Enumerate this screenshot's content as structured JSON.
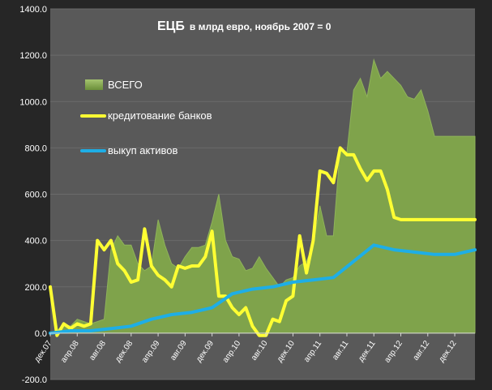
{
  "chart_data": {
    "type": "area",
    "title": "ЕЦБ",
    "subtitle": "в млрд евро, ноябрь 2007 = 0",
    "ylim": [
      -200,
      1400
    ],
    "yticks": [
      "-200.0",
      "0.0",
      "200.0",
      "400.0",
      "600.0",
      "800.0",
      "1000.0",
      "1200.0",
      "1400.0"
    ],
    "ytick_values": [
      -200,
      0,
      200,
      400,
      600,
      800,
      1000,
      1200,
      1400
    ],
    "xtick_labels": [
      "дек.07",
      "апр.08",
      "авг.08",
      "дек.08",
      "апр.09",
      "авг.09",
      "дек.09",
      "апр.10",
      "авг.10",
      "дек.10",
      "апр.11",
      "авг.11",
      "дек.11",
      "апр.12",
      "авг.12",
      "дек.12"
    ],
    "x_start": "2007-12",
    "x_end": "2013-03",
    "legend": [
      "ВСЕГО",
      "кредитование банков",
      "выкуп активов"
    ],
    "legend_position": "top-left",
    "colors": {
      "background": "#262626",
      "plot_area": "#595959",
      "total": "#7fa34b",
      "lending": "#ffff33",
      "assets": "#1eaee6"
    },
    "series": [
      {
        "name": "ВСЕГО",
        "x": [
          "2007-12",
          "2008-01",
          "2008-02",
          "2008-03",
          "2008-04",
          "2008-05",
          "2008-06",
          "2008-07",
          "2008-08",
          "2008-09",
          "2008-10",
          "2008-11",
          "2008-12",
          "2009-01",
          "2009-02",
          "2009-03",
          "2009-04",
          "2009-05",
          "2009-06",
          "2009-07",
          "2009-08",
          "2009-09",
          "2009-10",
          "2009-11",
          "2009-12",
          "2010-01",
          "2010-02",
          "2010-03",
          "2010-04",
          "2010-05",
          "2010-06",
          "2010-07",
          "2010-08",
          "2010-09",
          "2010-10",
          "2010-11",
          "2010-12",
          "2011-01",
          "2011-02",
          "2011-03",
          "2011-04",
          "2011-05",
          "2011-06",
          "2011-07",
          "2011-08",
          "2011-09",
          "2011-10",
          "2011-11",
          "2011-12",
          "2012-01",
          "2012-02",
          "2012-03",
          "2012-04",
          "2012-05",
          "2012-06",
          "2012-07",
          "2012-08",
          "2012-09",
          "2012-10",
          "2012-11",
          "2012-12",
          "2013-01",
          "2013-02",
          "2013-03"
        ],
        "values": [
          0,
          10,
          40,
          30,
          60,
          50,
          40,
          50,
          60,
          360,
          420,
          380,
          380,
          300,
          270,
          290,
          490,
          380,
          300,
          280,
          330,
          370,
          370,
          380,
          480,
          600,
          400,
          330,
          320,
          270,
          280,
          330,
          280,
          240,
          200,
          230,
          240,
          290,
          310,
          380,
          550,
          420,
          420,
          800,
          780,
          1050,
          1100,
          1020,
          1180,
          1100,
          1130,
          1100,
          1070,
          1020,
          1010,
          1050,
          960,
          850,
          850,
          850,
          850,
          850,
          850,
          850
        ]
      },
      {
        "name": "кредитование банков",
        "x": [
          "2007-12",
          "2008-01",
          "2008-02",
          "2008-03",
          "2008-04",
          "2008-05",
          "2008-06",
          "2008-07",
          "2008-08",
          "2008-09",
          "2008-10",
          "2008-11",
          "2008-12",
          "2009-01",
          "2009-02",
          "2009-03",
          "2009-04",
          "2009-05",
          "2009-06",
          "2009-07",
          "2009-08",
          "2009-09",
          "2009-10",
          "2009-11",
          "2009-12",
          "2010-01",
          "2010-02",
          "2010-03",
          "2010-04",
          "2010-05",
          "2010-06",
          "2010-07",
          "2010-08",
          "2010-09",
          "2010-10",
          "2010-11",
          "2010-12",
          "2011-01",
          "2011-02",
          "2011-03",
          "2011-04",
          "2011-05",
          "2011-06",
          "2011-07",
          "2011-08",
          "2011-09",
          "2011-10",
          "2011-11",
          "2011-12",
          "2012-01",
          "2012-02",
          "2012-03",
          "2012-04",
          "2012-05",
          "2012-06",
          "2012-07",
          "2012-08",
          "2012-09",
          "2012-10",
          "2012-11",
          "2012-12",
          "2013-01",
          "2013-02",
          "2013-03"
        ],
        "values": [
          200,
          -10,
          40,
          20,
          40,
          30,
          40,
          400,
          360,
          400,
          300,
          270,
          220,
          230,
          450,
          290,
          250,
          230,
          200,
          290,
          280,
          290,
          290,
          330,
          440,
          160,
          160,
          110,
          80,
          110,
          30,
          -10,
          -10,
          60,
          50,
          140,
          160,
          420,
          260,
          400,
          700,
          690,
          650,
          800,
          770,
          770,
          710,
          660,
          700,
          700,
          620,
          500,
          490,
          490,
          490,
          490,
          490,
          490,
          490,
          490,
          490,
          490,
          490,
          490
        ]
      },
      {
        "name": "выкуп активов",
        "x": [
          "2007-12",
          "2008-03",
          "2008-06",
          "2008-09",
          "2008-12",
          "2009-03",
          "2009-06",
          "2009-09",
          "2009-12",
          "2010-03",
          "2010-06",
          "2010-09",
          "2010-12",
          "2011-03",
          "2011-06",
          "2011-09",
          "2011-12",
          "2012-03",
          "2012-06",
          "2012-09",
          "2012-12",
          "2013-03"
        ],
        "values": [
          0,
          10,
          10,
          20,
          30,
          60,
          80,
          90,
          110,
          170,
          190,
          200,
          220,
          230,
          240,
          310,
          380,
          360,
          350,
          340,
          340,
          360
        ]
      }
    ]
  }
}
